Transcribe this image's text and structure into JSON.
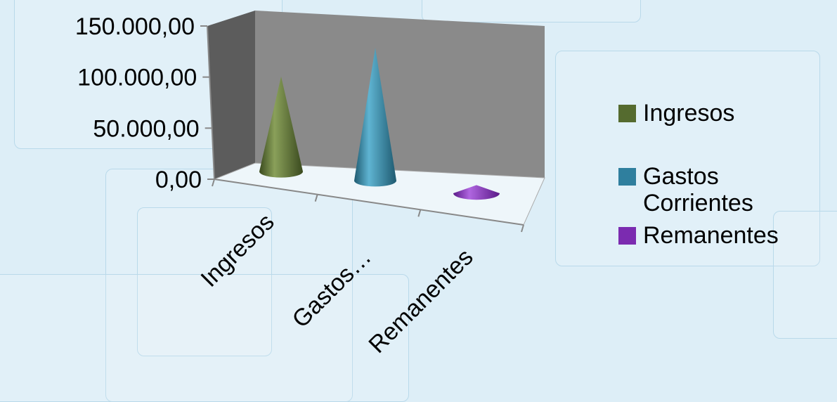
{
  "chart_data": {
    "type": "bar",
    "shape": "cone-3d",
    "categories": [
      "Ingresos",
      "Gastos…",
      "Remanentes"
    ],
    "series": [
      {
        "name": "Ingresos",
        "values": [
          93000,
          0,
          0
        ],
        "color": "#556b2f"
      },
      {
        "name": "Gastos Corrientes",
        "values": [
          0,
          130000,
          0
        ],
        "color": "#2f7f9e"
      },
      {
        "name": "Remanentes",
        "values": [
          0,
          0,
          8000
        ],
        "color": "#7b2bb0"
      }
    ],
    "y_ticks": [
      "150.000,00",
      "100.000,00",
      "50.000,00",
      "0,00"
    ],
    "ylim": [
      0,
      150000
    ],
    "title": "",
    "xlabel": "",
    "ylabel": "",
    "legend_position": "right"
  },
  "legend": {
    "items": [
      {
        "label": "Ingresos",
        "color": "#556b2f"
      },
      {
        "label": "Gastos Corrientes",
        "color": "#2f7f9e"
      },
      {
        "label": "Remanentes",
        "color": "#7b2bb0"
      }
    ]
  }
}
